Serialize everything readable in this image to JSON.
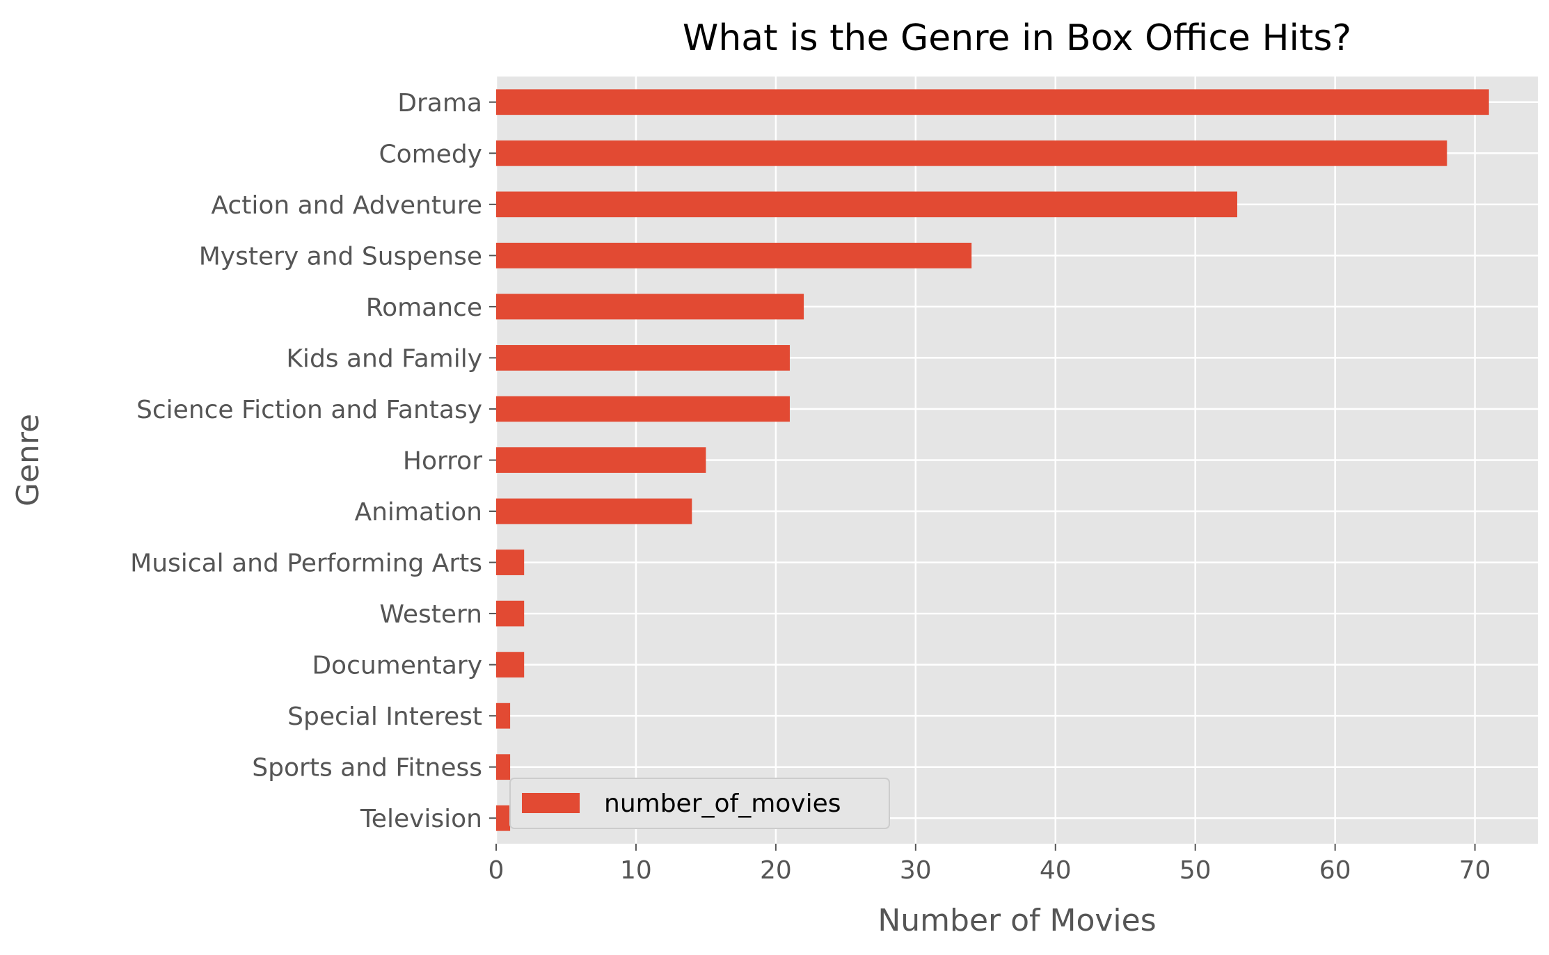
{
  "chart_data": {
    "type": "bar",
    "orientation": "horizontal",
    "title": "What is the Genre in Box Office Hits?",
    "xlabel": "Number of Movies",
    "ylabel": "Genre",
    "xlim": [
      0,
      74.5
    ],
    "xticks": [
      0,
      10,
      20,
      30,
      40,
      50,
      60,
      70
    ],
    "categories": [
      "Drama",
      "Comedy",
      "Action and Adventure",
      "Mystery and Suspense",
      "Romance",
      "Kids and Family",
      "Science Fiction and Fantasy",
      "Horror",
      "Animation",
      "Musical and Performing Arts",
      "Western",
      "Documentary",
      "Special Interest",
      "Sports and Fitness",
      "Television"
    ],
    "series": [
      {
        "name": "number_of_movies",
        "values": [
          71,
          68,
          53,
          34,
          22,
          21,
          21,
          15,
          14,
          2,
          2,
          2,
          1,
          1,
          1
        ],
        "color": "#E24A33"
      }
    ],
    "grid": true,
    "legend_position": "bottom-left",
    "background": "#E5E5E5"
  }
}
